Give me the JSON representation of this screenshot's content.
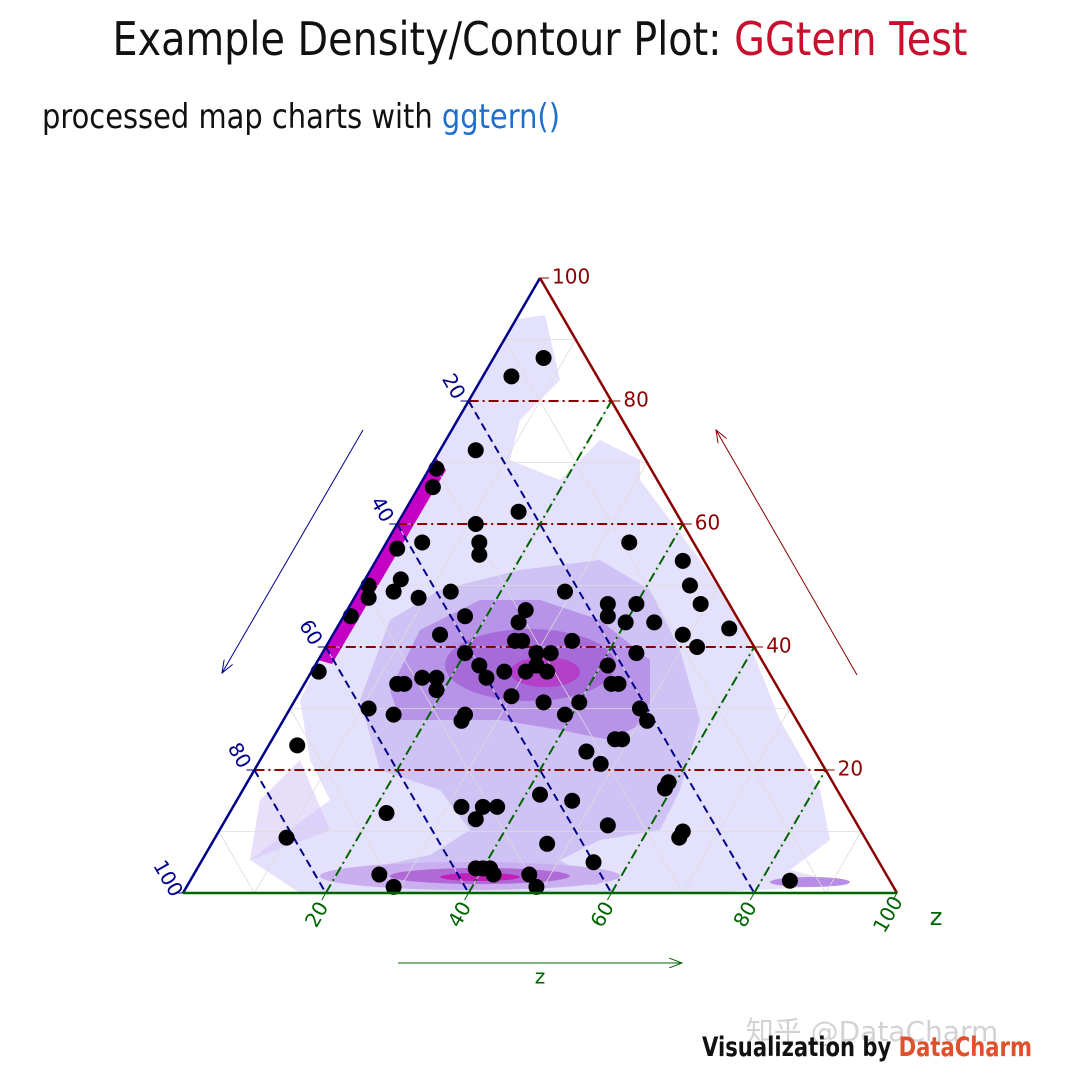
{
  "chart_data": {
    "type": "ternary",
    "title": "Example Density/Contour Plot: ",
    "title_highlight": "GGtern Test",
    "subtitle": "processed map charts with ",
    "subtitle_highlight": "ggtern()",
    "zlab": "z",
    "footer": "Visualization by ",
    "footer_highlight": "DataCharm",
    "watermark": "知乎 @DataCharm",
    "xticks": [
      20,
      40,
      60,
      80,
      100
    ],
    "yticks": [
      20,
      40,
      60,
      80,
      100
    ],
    "zticks": [
      20,
      40,
      60,
      80,
      100
    ],
    "minor_grid": [
      10,
      20,
      30,
      40,
      50,
      60,
      70,
      80,
      90
    ],
    "axis_colors": {
      "x": "#00008b",
      "y": "#8b0000",
      "z": "#006400"
    },
    "point_color": "#000000",
    "points": {
      "x": [
        6,
        12,
        23,
        30,
        32,
        22,
        29,
        30,
        31,
        38,
        42,
        9,
        3,
        4,
        4,
        2,
        9,
        8,
        44,
        49,
        50,
        46,
        43,
        38,
        38,
        54,
        22,
        18,
        17,
        13,
        16,
        12,
        29,
        31,
        43,
        33,
        32,
        25,
        17,
        29,
        31,
        32,
        40,
        41,
        40,
        37,
        34,
        31,
        63,
        53,
        52,
        49,
        47,
        48,
        38,
        34,
        23,
        22,
        22,
        29,
        32,
        21,
        21,
        59,
        56,
        46,
        47,
        32,
        27,
        26,
        31,
        72,
        23,
        24,
        65,
        54,
        51,
        49,
        53,
        42,
        38,
        35,
        25,
        26,
        81,
        45,
        71,
        70,
        57,
        55,
        55,
        50,
        50,
        40,
        14,
        56
      ],
      "y": [
        87,
        84,
        72,
        69,
        66,
        62,
        60,
        57,
        55,
        57,
        56,
        57,
        54,
        50,
        47,
        43,
        42,
        40,
        51,
        50,
        48,
        49,
        48,
        49,
        45,
        45,
        49,
        45,
        47,
        47,
        44,
        44,
        46,
        44,
        42,
        41,
        41,
        41,
        39,
        39,
        39,
        37,
        37,
        39,
        35,
        36,
        36,
        36,
        36,
        34,
        34,
        35,
        35,
        33,
        32,
        31,
        34,
        34,
        37,
        31,
        29,
        30,
        28,
        30,
        29,
        29,
        28,
        23,
        25,
        25,
        21,
        24,
        18,
        17,
        13,
        14,
        14,
        14,
        12,
        16,
        15,
        11,
        10,
        9,
        9,
        8,
        3,
        1,
        4,
        4,
        3,
        3,
        1,
        5,
        2,
        4
      ],
      "z": [
        7,
        4,
        5,
        1,
        2,
        16,
        11,
        13,
        14,
        5,
        2,
        34,
        43,
        46,
        49,
        55,
        49,
        52,
        5,
        1,
        2,
        5,
        9,
        13,
        17,
        1,
        29,
        37,
        36,
        40,
        40,
        44,
        25,
        25,
        15,
        26,
        27,
        34,
        44,
        32,
        30,
        31,
        23,
        20,
        25,
        27,
        30,
        33,
        1,
        13,
        14,
        16,
        18,
        19,
        30,
        35,
        43,
        44,
        41,
        40,
        39,
        49,
        51,
        11,
        15,
        25,
        25,
        45,
        48,
        49,
        48,
        4,
        59,
        59,
        22,
        32,
        35,
        37,
        35,
        42,
        47,
        54,
        65,
        65,
        10,
        47,
        26,
        29,
        39,
        41,
        42,
        47,
        49,
        55,
        84,
        40
      ]
    }
  }
}
